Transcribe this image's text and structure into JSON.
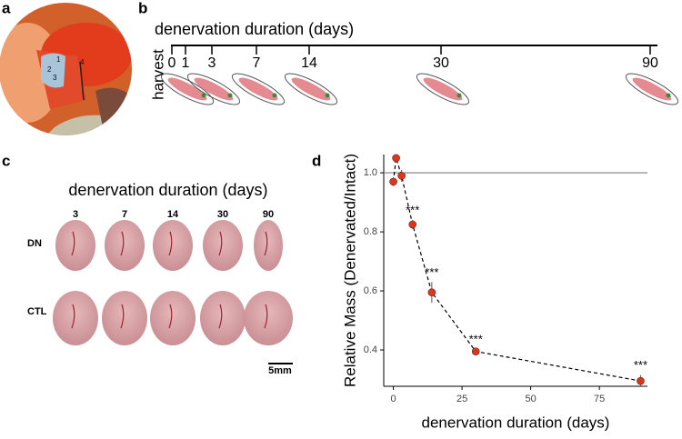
{
  "panels": {
    "a": {
      "letter": "a",
      "labels": [
        "1",
        "2",
        "3",
        "4"
      ]
    },
    "b": {
      "letter": "b",
      "title": "denervation duration (days)",
      "axis_label": "harvest",
      "ticks": [
        "0",
        "1",
        "3",
        "7",
        "14",
        "30",
        "90"
      ]
    },
    "c": {
      "letter": "c",
      "title": "denervation duration (days)",
      "columns": [
        "3",
        "7",
        "14",
        "30",
        "90"
      ],
      "rows": [
        "DN",
        "CTL"
      ],
      "scale_bar": "5mm"
    }
  },
  "chart_data": {
    "type": "line",
    "panel_letter": "d",
    "xlabel": "denervation duration (days)",
    "ylabel": "Relative Mass (Denervated/Intact)",
    "x": [
      0,
      1,
      3,
      7,
      14,
      30,
      90
    ],
    "values": [
      0.97,
      1.05,
      0.99,
      0.825,
      0.595,
      0.395,
      0.295
    ],
    "errors": [
      0.015,
      0.005,
      0.02,
      0.015,
      0.035,
      0.008,
      0.02
    ],
    "significance": [
      null,
      null,
      null,
      "***",
      "***",
      "***",
      "***"
    ],
    "color": "#d9381e",
    "line_style": "dashed",
    "reference_line": 1,
    "xlim": [
      -3.5,
      92.5
    ],
    "xticks": [
      0,
      25,
      50,
      75
    ],
    "ylim": [
      0.277,
      1.062
    ],
    "yticks": [
      0.4,
      0.6,
      0.8,
      {
        "value": 1,
        "label": "1.0"
      }
    ]
  }
}
